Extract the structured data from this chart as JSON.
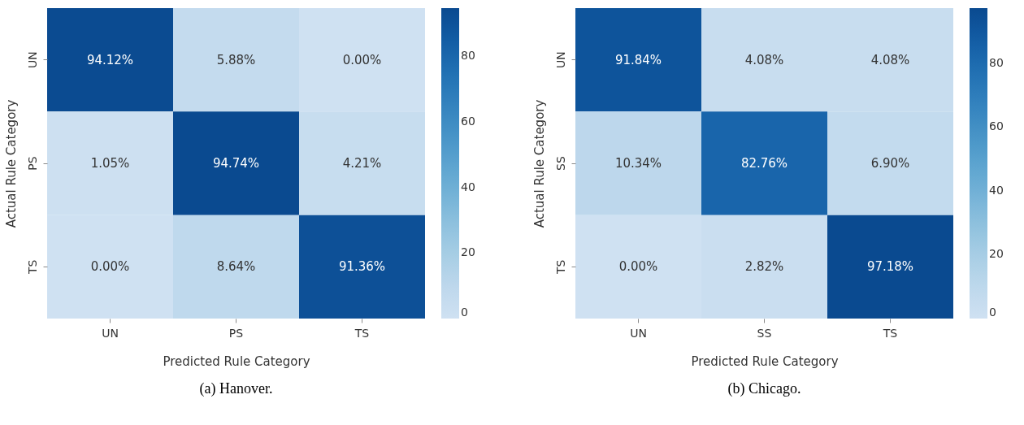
{
  "chart_data": [
    {
      "type": "heatmap",
      "title": "(a) Hanover.",
      "xlabel": "Predicted Rule Category",
      "ylabel": "Actual Rule Category",
      "categories": [
        "UN",
        "PS",
        "TS"
      ],
      "y_categories": [
        "UN",
        "PS",
        "TS"
      ],
      "cells": [
        [
          94.12,
          5.88,
          0.0
        ],
        [
          1.05,
          94.74,
          4.21
        ],
        [
          0.0,
          8.64,
          91.36
        ]
      ],
      "cell_labels": [
        [
          "94.12%",
          "5.88%",
          "0.00%"
        ],
        [
          "1.05%",
          "94.74%",
          "4.21%"
        ],
        [
          "0.00%",
          "8.64%",
          "91.36%"
        ]
      ],
      "clim": [
        0,
        94.74
      ],
      "cticks": [
        0,
        20,
        40,
        60,
        80
      ]
    },
    {
      "type": "heatmap",
      "title": "(b) Chicago.",
      "xlabel": "Predicted Rule Category",
      "ylabel": "Actual Rule Category",
      "categories": [
        "UN",
        "SS",
        "TS"
      ],
      "y_categories": [
        "UN",
        "SS",
        "TS"
      ],
      "cells": [
        [
          91.84,
          4.08,
          4.08
        ],
        [
          10.34,
          82.76,
          6.9
        ],
        [
          0.0,
          2.82,
          97.18
        ]
      ],
      "cell_labels": [
        [
          "91.84%",
          "4.08%",
          "4.08%"
        ],
        [
          "10.34%",
          "82.76%",
          "6.90%"
        ],
        [
          "0.00%",
          "2.82%",
          "97.18%"
        ]
      ],
      "clim": [
        0,
        97.18
      ],
      "cticks": [
        0,
        20,
        40,
        60,
        80
      ]
    }
  ]
}
